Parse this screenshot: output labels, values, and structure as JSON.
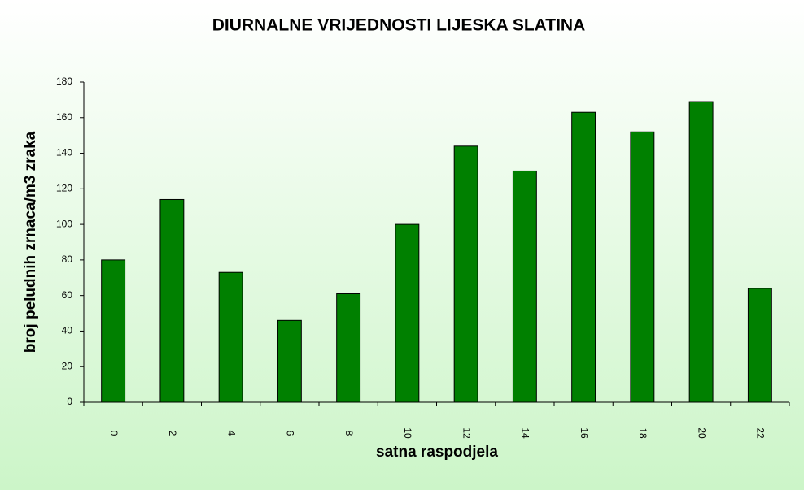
{
  "chart_data": {
    "type": "bar",
    "title": "DIURNALNE VRIJEDNOSTI LIJESKA SLATINA",
    "x_label": "satna raspodjela",
    "y_label": "broj peludnih zrnaca/m3 zraka",
    "categories": [
      "0",
      "2",
      "4",
      "6",
      "8",
      "10",
      "12",
      "14",
      "16",
      "18",
      "20",
      "22"
    ],
    "values": [
      80,
      114,
      73,
      46,
      61,
      100,
      144,
      130,
      163,
      152,
      169,
      64
    ],
    "color": "#008000",
    "ylim": [
      0,
      180
    ],
    "yticks": [
      0,
      20,
      40,
      60,
      80,
      100,
      120,
      140,
      160,
      180
    ]
  }
}
